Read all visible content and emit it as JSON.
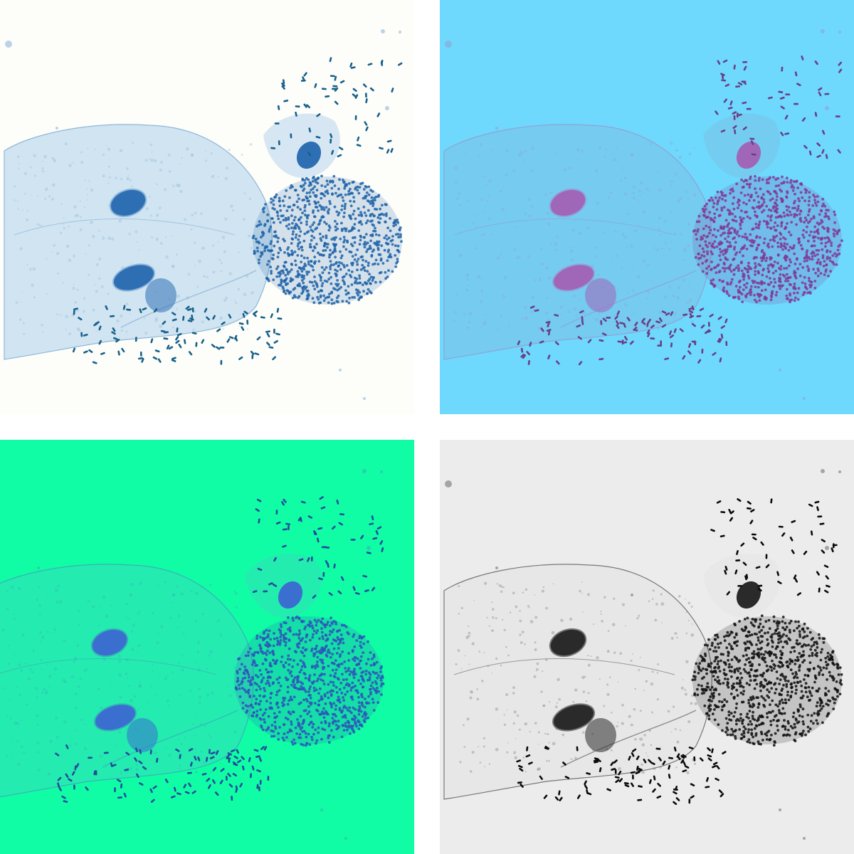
{
  "image": {
    "description_type": "micrograph-grid",
    "layout": "2x2",
    "panels": [
      {
        "id": "top-left",
        "variant": "original-blue-stain",
        "background": "#fdfdf9",
        "cell_fill": "#bcd8ee",
        "cell_stroke": "#8fb7da",
        "nucleus": "#2e6fb4",
        "bacteria": "#16608a",
        "cluster": "#1f63a8"
      },
      {
        "id": "top-right",
        "variant": "cyan-magenta-filter",
        "background": "#6ed8fd",
        "cell_fill": "#78c6ea",
        "cell_stroke": "#8fa4d6",
        "nucleus": "#a066b8",
        "bacteria": "#6a3f86",
        "cluster": "#7e3b95"
      },
      {
        "id": "bottom-left",
        "variant": "green-blue-filter",
        "background": "#10fda5",
        "cell_fill": "#2ee2b5",
        "cell_stroke": "#36b4b6",
        "nucleus": "#3a6fcf",
        "bacteria": "#234c9a",
        "cluster": "#2d55b8"
      },
      {
        "id": "bottom-right",
        "variant": "grayscale-edge",
        "background": "#ececec",
        "cell_fill": "#e6e6e6",
        "cell_stroke": "#777777",
        "nucleus": "#2a2a2a",
        "bacteria": "#0a0a0a",
        "cluster": "#111111"
      }
    ]
  }
}
